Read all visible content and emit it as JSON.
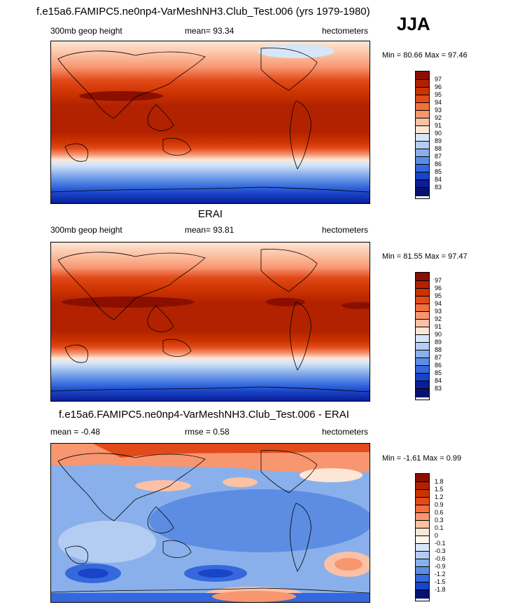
{
  "header": {
    "title": "f.e15a6.FAMIPC5.ne0np4-VarMeshNH3.Club_Test.006 (yrs 1979-1980)",
    "season": "JJA"
  },
  "panels": [
    {
      "heading": "",
      "left_label": "300mb geop height",
      "center_label": "mean=  93.34",
      "right_label": "hectometers",
      "minmax": "Min =  80.66 Max =  97.46",
      "levels": [
        "97",
        "96",
        "95",
        "94",
        "93",
        "92",
        "91",
        "90",
        "89",
        "88",
        "87",
        "86",
        "85",
        "84",
        "83"
      ]
    },
    {
      "heading": "ERAI",
      "left_label": "300mb geop height",
      "center_label": "mean=  93.81",
      "right_label": "hectometers",
      "minmax": "Min =  81.55 Max =  97.47",
      "levels": [
        "97",
        "96",
        "95",
        "94",
        "93",
        "92",
        "91",
        "90",
        "89",
        "88",
        "87",
        "86",
        "85",
        "84",
        "83"
      ]
    },
    {
      "heading": "f.e15a6.FAMIPC5.ne0np4-VarMeshNH3.Club_Test.006 - ERAI",
      "left_label": "mean =  -0.48",
      "center_label": "rmse =   0.58",
      "right_label": "hectometers",
      "minmax": "Min =  -1.61 Max =   0.99",
      "levels": [
        "1.8",
        "1.5",
        "1.2",
        "0.9",
        "0.6",
        "0.3",
        "0.1",
        "0",
        "-0.1",
        "-0.3",
        "-0.6",
        "-0.9",
        "-1.2",
        "-1.5",
        "-1.8"
      ]
    }
  ],
  "colors": {
    "abs_scale": [
      "#8b0f00",
      "#b22200",
      "#cc3300",
      "#e24a1a",
      "#f0703f",
      "#f89670",
      "#fcc1a4",
      "#fde6d6",
      "#d6e6f8",
      "#b3cdf2",
      "#8ab0eb",
      "#5c8de3",
      "#3568dc",
      "#1844c8",
      "#0b1e96",
      "#06136e"
    ],
    "diff_scale": [
      "#8b0f00",
      "#b22200",
      "#cc3300",
      "#e24a1a",
      "#f0703f",
      "#f89670",
      "#fcc1a4",
      "#fde6d6",
      "#fff7ee",
      "#d6e6f8",
      "#b3cdf2",
      "#8ab0eb",
      "#5c8de3",
      "#3568dc",
      "#1844c8",
      "#06136e"
    ]
  }
}
